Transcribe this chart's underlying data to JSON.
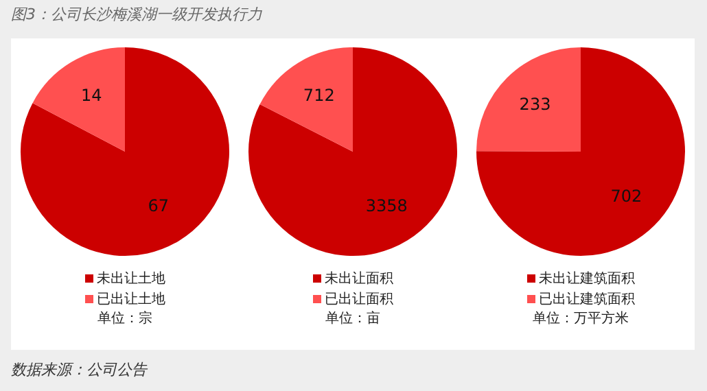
{
  "chart_data": [
    {
      "type": "pie",
      "title": "图3：公司长沙梅溪湖一级开发执行力",
      "categories": [
        "未出让土地",
        "已出让土地"
      ],
      "values": [
        67,
        14
      ],
      "colors": [
        "#cc0000",
        "#ff5050"
      ],
      "data_labels": true,
      "legend": "bottom",
      "annotations": [
        "单位：宗",
        "数据来源：公司公告"
      ]
    },
    {
      "type": "pie",
      "categories": [
        "未出让面积",
        "已出让面积"
      ],
      "values": [
        3358,
        712
      ],
      "colors": [
        "#cc0000",
        "#ff5050"
      ],
      "data_labels": true,
      "legend": "bottom",
      "annotations": [
        "单位：亩"
      ]
    },
    {
      "type": "pie",
      "categories": [
        "未出让建筑面积",
        "已出让建筑面积"
      ],
      "values": [
        702,
        233
      ],
      "colors": [
        "#cc0000",
        "#ff5050"
      ],
      "data_labels": true,
      "legend": "bottom",
      "annotations": [
        "单位：万平方米"
      ]
    }
  ]
}
